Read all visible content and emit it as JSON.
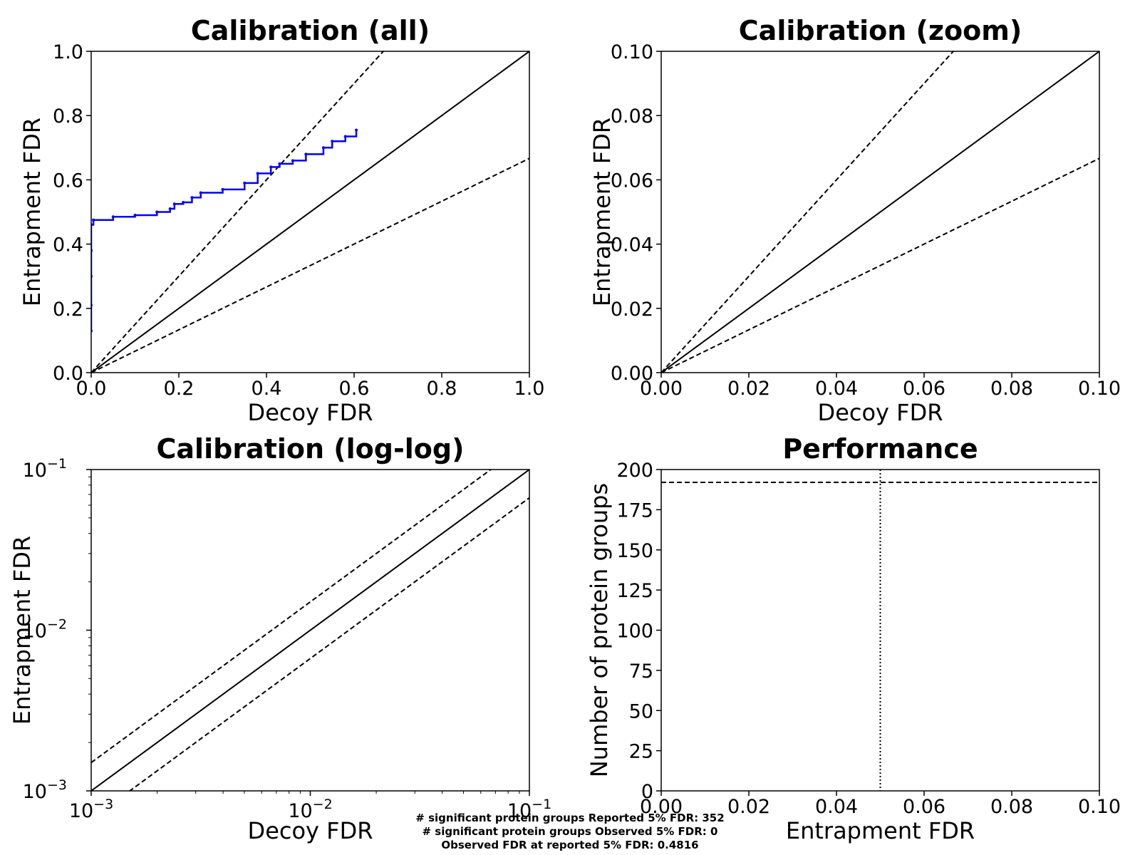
{
  "chart_data": [
    {
      "type": "line",
      "title": "Calibration (all)",
      "xlabel": "Decoy FDR",
      "ylabel": "Entrapment FDR",
      "xlim": [
        0,
        1.0
      ],
      "ylim": [
        0,
        1.0
      ],
      "xticks": [
        "0.0",
        "0.2",
        "0.4",
        "0.6",
        "0.8",
        "1.0"
      ],
      "yticks": [
        "0.0",
        "0.2",
        "0.4",
        "0.6",
        "0.8",
        "1.0"
      ],
      "reference_lines": [
        {
          "style": "solid",
          "slope": 1.0
        },
        {
          "style": "dashed",
          "slope": 1.5
        },
        {
          "style": "dashed",
          "slope": 0.6667
        }
      ],
      "series": [
        {
          "color": "#0000ff",
          "points": [
            [
              0.0,
              0.13
            ],
            [
              0.0,
              0.21
            ],
            [
              0.0,
              0.3
            ],
            [
              0.0,
              0.38
            ],
            [
              0.0,
              0.46
            ],
            [
              0.005,
              0.475
            ],
            [
              0.05,
              0.485
            ],
            [
              0.1,
              0.49
            ],
            [
              0.15,
              0.5
            ],
            [
              0.18,
              0.51
            ],
            [
              0.19,
              0.525
            ],
            [
              0.21,
              0.53
            ],
            [
              0.23,
              0.545
            ],
            [
              0.25,
              0.56
            ],
            [
              0.3,
              0.57
            ],
            [
              0.35,
              0.59
            ],
            [
              0.38,
              0.62
            ],
            [
              0.41,
              0.64
            ],
            [
              0.43,
              0.65
            ],
            [
              0.46,
              0.66
            ],
            [
              0.49,
              0.68
            ],
            [
              0.53,
              0.7
            ],
            [
              0.55,
              0.72
            ],
            [
              0.58,
              0.735
            ],
            [
              0.605,
              0.755
            ]
          ]
        }
      ]
    },
    {
      "type": "line",
      "title": "Calibration (zoom)",
      "xlabel": "Decoy FDR",
      "ylabel": "Entrapment FDR",
      "xlim": [
        0,
        0.1
      ],
      "ylim": [
        0,
        0.1
      ],
      "xticks": [
        "0.00",
        "0.02",
        "0.04",
        "0.06",
        "0.08",
        "0.10"
      ],
      "yticks": [
        "0.00",
        "0.02",
        "0.04",
        "0.06",
        "0.08",
        "0.10"
      ],
      "reference_lines": [
        {
          "style": "solid",
          "slope": 1.0
        },
        {
          "style": "dashed",
          "slope": 1.5
        },
        {
          "style": "dashed",
          "slope": 0.6667
        }
      ],
      "series": []
    },
    {
      "type": "line",
      "title": "Calibration (log-log)",
      "xlabel": "Decoy FDR",
      "ylabel": "Entrapment FDR",
      "xscale": "log",
      "yscale": "log",
      "xlim": [
        0.001,
        0.1
      ],
      "ylim": [
        0.001,
        0.1
      ],
      "xticks": [
        {
          "base": "10",
          "exp": "−3"
        },
        {
          "base": "10",
          "exp": "−2"
        },
        {
          "base": "10",
          "exp": "−1"
        }
      ],
      "yticks": [
        {
          "base": "10",
          "exp": "−3"
        },
        {
          "base": "10",
          "exp": "−2"
        },
        {
          "base": "10",
          "exp": "−1"
        }
      ],
      "reference_lines": [
        {
          "style": "solid",
          "slope": 1.0
        },
        {
          "style": "dashed",
          "slope": 1.5
        },
        {
          "style": "dashed",
          "slope": 0.6667
        }
      ],
      "series": []
    },
    {
      "type": "line",
      "title": "Performance",
      "xlabel": "Entrapment FDR",
      "ylabel": "Number of protein groups",
      "xlim": [
        0,
        0.1
      ],
      "ylim": [
        0,
        200
      ],
      "xticks": [
        "0.00",
        "0.02",
        "0.04",
        "0.06",
        "0.08",
        "0.10"
      ],
      "yticks": [
        "0",
        "25",
        "50",
        "75",
        "100",
        "125",
        "150",
        "175",
        "200"
      ],
      "hlines": [
        {
          "y": 192,
          "style": "dashed"
        }
      ],
      "vlines": [
        {
          "x": 0.05,
          "style": "dotted"
        }
      ],
      "series": []
    }
  ],
  "footer": {
    "line1": "# significant protein groups Reported 5% FDR: 352",
    "line2": "# significant protein groups Observed 5% FDR: 0",
    "line3": "Observed FDR at reported 5% FDR: 0.4816"
  }
}
